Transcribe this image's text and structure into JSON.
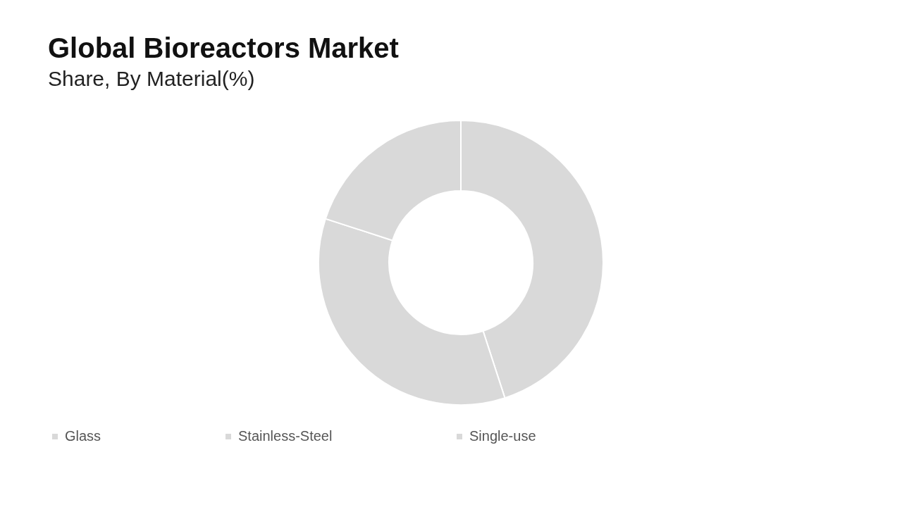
{
  "chart_data": {
    "type": "donut",
    "title": "Global Bioreactors Market",
    "subtitle": "Share, By Material(%)",
    "categories": [
      "Glass",
      "Stainless-Steel",
      "Single-use"
    ],
    "values": [
      45,
      35,
      20
    ],
    "colors": [
      "#d9d9d9",
      "#d9d9d9",
      "#d9d9d9"
    ],
    "legend": "bottom"
  }
}
